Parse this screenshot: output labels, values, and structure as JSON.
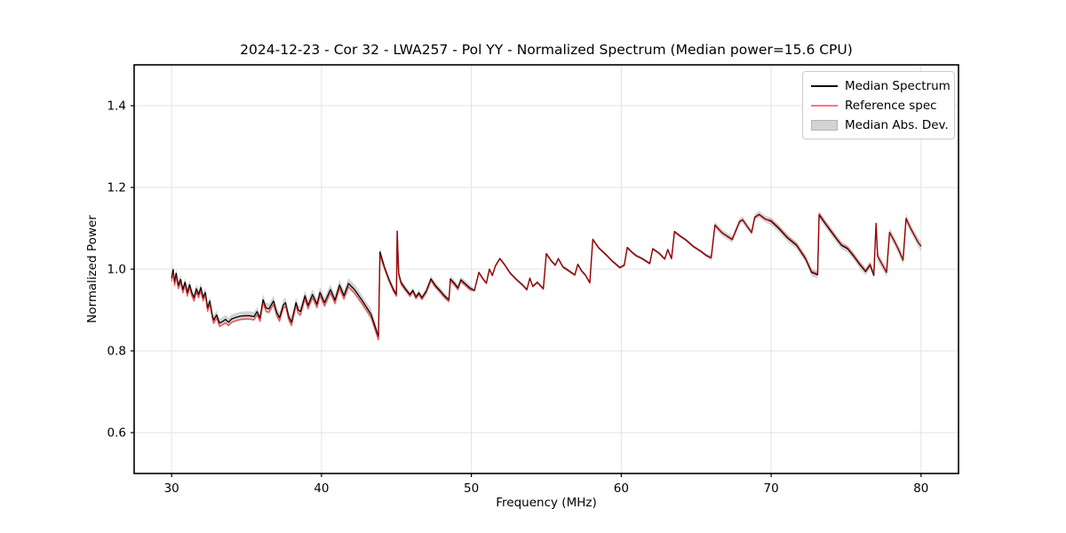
{
  "chart_data": {
    "type": "line",
    "title": "2024-12-23 - Cor 32 - LWA257 - Pol YY - Normalized Spectrum (Median power=15.6 CPU)",
    "xlabel": "Frequency (MHz)",
    "ylabel": "Normalized Power",
    "xlim": [
      27.5,
      82.5
    ],
    "ylim": [
      0.5,
      1.5
    ],
    "xticks": [
      30,
      40,
      50,
      60,
      70,
      80
    ],
    "yticks": [
      0.6,
      0.8,
      1.0,
      1.2,
      1.4
    ],
    "ytick_labels": [
      "0.6",
      "0.8",
      "1.0",
      "1.2",
      "1.4"
    ],
    "grid": true,
    "grid_color": "#e3e3e3",
    "background_color": "#ffffff",
    "legend": {
      "position": "upper right",
      "entries": [
        {
          "label": "Median Spectrum",
          "style": "line",
          "color": "#000000"
        },
        {
          "label": "Reference spec",
          "style": "line",
          "color": "#f47b7b"
        },
        {
          "label": "Median Abs. Dev.",
          "style": "patch",
          "color": "#d3d3d3",
          "edge_color": "#b5b5b5"
        }
      ]
    },
    "series": [
      {
        "name": "Median Spectrum",
        "color": "#000000",
        "style": "line",
        "points": [
          [
            30.0,
            0.978
          ],
          [
            30.1,
            0.999
          ],
          [
            30.2,
            0.968
          ],
          [
            30.3,
            0.99
          ],
          [
            30.45,
            0.96
          ],
          [
            30.6,
            0.975
          ],
          [
            30.75,
            0.95
          ],
          [
            30.9,
            0.968
          ],
          [
            31.05,
            0.942
          ],
          [
            31.2,
            0.962
          ],
          [
            31.35,
            0.942
          ],
          [
            31.5,
            0.93
          ],
          [
            31.65,
            0.952
          ],
          [
            31.8,
            0.938
          ],
          [
            31.95,
            0.955
          ],
          [
            32.1,
            0.93
          ],
          [
            32.25,
            0.943
          ],
          [
            32.4,
            0.905
          ],
          [
            32.55,
            0.922
          ],
          [
            32.7,
            0.89
          ],
          [
            32.8,
            0.875
          ],
          [
            33.0,
            0.888
          ],
          [
            33.2,
            0.868
          ],
          [
            33.4,
            0.872
          ],
          [
            33.6,
            0.877
          ],
          [
            33.8,
            0.87
          ],
          [
            34.0,
            0.878
          ],
          [
            34.3,
            0.882
          ],
          [
            34.6,
            0.885
          ],
          [
            34.9,
            0.886
          ],
          [
            35.2,
            0.886
          ],
          [
            35.5,
            0.884
          ],
          [
            35.7,
            0.896
          ],
          [
            35.9,
            0.88
          ],
          [
            36.1,
            0.925
          ],
          [
            36.3,
            0.905
          ],
          [
            36.5,
            0.903
          ],
          [
            36.8,
            0.922
          ],
          [
            37.0,
            0.895
          ],
          [
            37.2,
            0.881
          ],
          [
            37.45,
            0.912
          ],
          [
            37.6,
            0.918
          ],
          [
            37.8,
            0.885
          ],
          [
            38.0,
            0.87
          ],
          [
            38.3,
            0.918
          ],
          [
            38.45,
            0.9
          ],
          [
            38.6,
            0.896
          ],
          [
            38.9,
            0.935
          ],
          [
            39.1,
            0.911
          ],
          [
            39.4,
            0.938
          ],
          [
            39.7,
            0.914
          ],
          [
            39.9,
            0.943
          ],
          [
            40.2,
            0.918
          ],
          [
            40.6,
            0.95
          ],
          [
            40.9,
            0.924
          ],
          [
            41.2,
            0.961
          ],
          [
            41.5,
            0.935
          ],
          [
            41.8,
            0.965
          ],
          [
            42.2,
            0.95
          ],
          [
            42.7,
            0.924
          ],
          [
            43.3,
            0.89
          ],
          [
            43.8,
            0.835
          ],
          [
            43.9,
            1.042
          ],
          [
            44.2,
            1.005
          ],
          [
            44.5,
            0.975
          ],
          [
            44.8,
            0.95
          ],
          [
            45.0,
            0.938
          ],
          [
            45.05,
            1.093
          ],
          [
            45.15,
            0.99
          ],
          [
            45.3,
            0.968
          ],
          [
            45.6,
            0.952
          ],
          [
            45.9,
            0.938
          ],
          [
            46.1,
            0.948
          ],
          [
            46.3,
            0.932
          ],
          [
            46.5,
            0.942
          ],
          [
            46.7,
            0.93
          ],
          [
            47.0,
            0.947
          ],
          [
            47.3,
            0.976
          ],
          [
            47.6,
            0.96
          ],
          [
            47.9,
            0.948
          ],
          [
            48.2,
            0.935
          ],
          [
            48.5,
            0.925
          ],
          [
            48.6,
            0.976
          ],
          [
            48.9,
            0.964
          ],
          [
            49.1,
            0.954
          ],
          [
            49.3,
            0.974
          ],
          [
            49.6,
            0.964
          ],
          [
            49.9,
            0.954
          ],
          [
            50.2,
            0.948
          ],
          [
            50.5,
            0.992
          ],
          [
            50.8,
            0.975
          ],
          [
            51.0,
            0.966
          ],
          [
            51.2,
            1.0
          ],
          [
            51.4,
            0.985
          ],
          [
            51.6,
            1.008
          ],
          [
            51.9,
            1.026
          ],
          [
            52.2,
            1.012
          ],
          [
            52.6,
            0.99
          ],
          [
            53.0,
            0.975
          ],
          [
            53.4,
            0.962
          ],
          [
            53.7,
            0.95
          ],
          [
            53.9,
            0.978
          ],
          [
            54.1,
            0.958
          ],
          [
            54.4,
            0.968
          ],
          [
            54.8,
            0.952
          ],
          [
            55.0,
            1.038
          ],
          [
            55.3,
            1.022
          ],
          [
            55.6,
            1.01
          ],
          [
            55.8,
            1.026
          ],
          [
            56.1,
            1.006
          ],
          [
            56.5,
            0.996
          ],
          [
            56.9,
            0.986
          ],
          [
            57.1,
            1.012
          ],
          [
            57.35,
            0.996
          ],
          [
            57.6,
            0.986
          ],
          [
            57.9,
            0.967
          ],
          [
            58.1,
            1.073
          ],
          [
            58.5,
            1.052
          ],
          [
            59.0,
            1.035
          ],
          [
            59.4,
            1.02
          ],
          [
            59.9,
            1.004
          ],
          [
            60.2,
            1.01
          ],
          [
            60.4,
            1.053
          ],
          [
            60.7,
            1.042
          ],
          [
            61.0,
            1.033
          ],
          [
            61.4,
            1.026
          ],
          [
            61.9,
            1.014
          ],
          [
            62.1,
            1.05
          ],
          [
            62.5,
            1.04
          ],
          [
            62.9,
            1.025
          ],
          [
            63.1,
            1.048
          ],
          [
            63.35,
            1.026
          ],
          [
            63.55,
            1.092
          ],
          [
            63.9,
            1.082
          ],
          [
            64.3,
            1.072
          ],
          [
            64.8,
            1.056
          ],
          [
            65.3,
            1.044
          ],
          [
            65.7,
            1.033
          ],
          [
            66.0,
            1.028
          ],
          [
            66.25,
            1.108
          ],
          [
            66.7,
            1.09
          ],
          [
            67.1,
            1.08
          ],
          [
            67.4,
            1.073
          ],
          [
            67.9,
            1.117
          ],
          [
            68.1,
            1.121
          ],
          [
            68.4,
            1.105
          ],
          [
            68.7,
            1.09
          ],
          [
            68.9,
            1.127
          ],
          [
            69.2,
            1.134
          ],
          [
            69.6,
            1.123
          ],
          [
            70.0,
            1.117
          ],
          [
            70.5,
            1.1
          ],
          [
            71.1,
            1.076
          ],
          [
            71.7,
            1.058
          ],
          [
            72.3,
            1.025
          ],
          [
            72.7,
            0.992
          ],
          [
            73.1,
            0.986
          ],
          [
            73.2,
            1.133
          ],
          [
            73.6,
            1.112
          ],
          [
            74.0,
            1.092
          ],
          [
            74.4,
            1.072
          ],
          [
            74.7,
            1.058
          ],
          [
            75.1,
            1.05
          ],
          [
            75.5,
            1.032
          ],
          [
            75.9,
            1.012
          ],
          [
            76.3,
            0.994
          ],
          [
            76.6,
            1.01
          ],
          [
            76.85,
            0.985
          ],
          [
            77.0,
            1.112
          ],
          [
            77.1,
            1.032
          ],
          [
            77.4,
            1.012
          ],
          [
            77.7,
            0.992
          ],
          [
            77.9,
            1.09
          ],
          [
            78.2,
            1.07
          ],
          [
            78.5,
            1.048
          ],
          [
            78.8,
            1.022
          ],
          [
            79.0,
            1.124
          ],
          [
            79.3,
            1.1
          ],
          [
            79.6,
            1.08
          ],
          [
            79.8,
            1.066
          ],
          [
            80.0,
            1.056
          ]
        ]
      },
      {
        "name": "Reference spec",
        "color": "rgba(255,0,0,0.6)",
        "style": "line",
        "derived_from": "Median Spectrum",
        "offset_regions": [
          {
            "from": 30,
            "to": 44,
            "offset": -0.008
          },
          {
            "from": 44,
            "to": 50,
            "offset": -0.004
          },
          {
            "from": 50,
            "to": 70,
            "offset": -0.001
          },
          {
            "from": 70,
            "to": 77,
            "offset": 0.003
          },
          {
            "from": 77,
            "to": 80.01,
            "offset": 0.0
          }
        ]
      },
      {
        "name": "Median Abs. Dev.",
        "color": "rgba(128,128,128,0.35)",
        "style": "band_around_median",
        "derived_from": "Median Spectrum",
        "halfwidth_regions": [
          {
            "from": 30,
            "to": 36,
            "halfwidth": 0.011
          },
          {
            "from": 36,
            "to": 44,
            "halfwidth": 0.013
          },
          {
            "from": 44,
            "to": 50,
            "halfwidth": 0.008
          },
          {
            "from": 50,
            "to": 65.8,
            "halfwidth": 0.004
          },
          {
            "from": 65.8,
            "to": 70,
            "halfwidth": 0.008
          },
          {
            "from": 70,
            "to": 77,
            "halfwidth": 0.009
          },
          {
            "from": 77,
            "to": 80.01,
            "halfwidth": 0.011
          }
        ]
      }
    ]
  }
}
